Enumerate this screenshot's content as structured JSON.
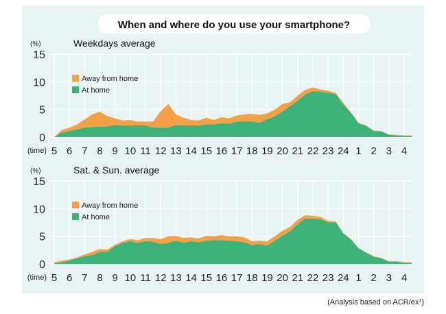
{
  "title": "When and where do you use your smartphone?",
  "footnote": "(Analysis based on ACR/ex",
  "footnote_sup": "1",
  "colors": {
    "away": "#f4a046",
    "home": "#3bb27a",
    "panel": "#e8f4f4",
    "grid": "#ffffff"
  },
  "chart_data": [
    {
      "type": "area",
      "stacked": true,
      "title": "Weekdays average",
      "ylabel": "(%)",
      "xlabel": "(time)",
      "ylim": [
        0,
        15
      ],
      "yticks": [
        "0",
        "5",
        "10",
        "15"
      ],
      "xticks": [
        "5",
        "6",
        "7",
        "8",
        "9",
        "10",
        "11",
        "12",
        "13",
        "14",
        "15",
        "16",
        "17",
        "18",
        "19",
        "20",
        "21",
        "22",
        "23",
        "24",
        "1",
        "2",
        "3",
        "4"
      ],
      "x": [
        5,
        5.5,
        6,
        6.5,
        7,
        7.5,
        8,
        8.5,
        9,
        9.5,
        10,
        10.5,
        11,
        11.5,
        12,
        12.5,
        13,
        13.5,
        14,
        14.5,
        15,
        15.5,
        16,
        16.5,
        17,
        17.5,
        18,
        18.5,
        19,
        19.5,
        20,
        20.5,
        21,
        21.5,
        22,
        22.5,
        23,
        23.5,
        24,
        24.5,
        25,
        25.5,
        26,
        26.5,
        27,
        27.5,
        28,
        28.5
      ],
      "grid": true,
      "legend_position": "top-left",
      "series": [
        {
          "name": "At home",
          "values": [
            0,
            0.8,
            1.1,
            1.4,
            1.7,
            1.8,
            1.9,
            1.9,
            2.2,
            2.1,
            2.1,
            2.1,
            2.1,
            1.7,
            1.7,
            1.7,
            2.2,
            2.1,
            2.1,
            2.1,
            2.3,
            2.3,
            2.5,
            2.4,
            2.8,
            2.8,
            2.8,
            2.6,
            3.2,
            3.8,
            4.6,
            5.6,
            6.6,
            7.7,
            8.3,
            8.2,
            8.0,
            7.8,
            5.9,
            4.4,
            2.5,
            2.0,
            1.1,
            1.0,
            0.4,
            0.3,
            0.2,
            0.2
          ]
        },
        {
          "name": "Away from home",
          "values": [
            0,
            0.5,
            0.6,
            0.9,
            1.5,
            2.3,
            2.7,
            1.9,
            1.2,
            0.9,
            1.0,
            0.7,
            0.7,
            1.1,
            3.0,
            4.3,
            1.9,
            1.4,
            1.0,
            0.9,
            1.2,
            0.8,
            1.1,
            1.0,
            1.1,
            1.3,
            1.4,
            1.4,
            1.1,
            1.2,
            1.4,
            0.7,
            0.9,
            0.8,
            0.7,
            0.4,
            0.4,
            0.2,
            0.3,
            0.1,
            0.1,
            0.1,
            0.1,
            0.1,
            0.1,
            0.1,
            0.1,
            0.1
          ]
        }
      ]
    },
    {
      "type": "area",
      "stacked": true,
      "title": "Sat. & Sun. average",
      "ylabel": "(%)",
      "xlabel": "(time)",
      "ylim": [
        0,
        15
      ],
      "yticks": [
        "0",
        "5",
        "10",
        "15"
      ],
      "xticks": [
        "5",
        "6",
        "7",
        "8",
        "9",
        "10",
        "11",
        "12",
        "13",
        "14",
        "15",
        "16",
        "17",
        "18",
        "19",
        "20",
        "21",
        "22",
        "23",
        "24",
        "1",
        "2",
        "3",
        "4"
      ],
      "x": [
        5,
        5.5,
        6,
        6.5,
        7,
        7.5,
        8,
        8.5,
        9,
        9.5,
        10,
        10.5,
        11,
        11.5,
        12,
        12.5,
        13,
        13.5,
        14,
        14.5,
        15,
        15.5,
        16,
        16.5,
        17,
        17.5,
        18,
        18.5,
        19,
        19.5,
        20,
        20.5,
        21,
        21.5,
        22,
        22.5,
        23,
        23.5,
        24,
        24.5,
        25,
        25.5,
        26,
        26.5,
        27,
        27.5,
        28,
        28.5
      ],
      "grid": true,
      "legend_position": "top-left",
      "series": [
        {
          "name": "At home",
          "values": [
            0.1,
            0.3,
            0.6,
            1.0,
            1.4,
            1.6,
            2.2,
            2.2,
            3.2,
            3.8,
            4.1,
            3.8,
            4.1,
            4.0,
            3.6,
            3.8,
            4.2,
            3.8,
            4.1,
            3.9,
            4.2,
            4.3,
            4.3,
            4.2,
            4.1,
            3.9,
            3.4,
            3.6,
            3.3,
            4.2,
            5.1,
            5.9,
            7.2,
            8.2,
            8.2,
            8.1,
            7.5,
            7.5,
            5.5,
            4.4,
            2.8,
            2.0,
            1.3,
            1.0,
            0.4,
            0.4,
            0.2,
            0.2
          ]
        },
        {
          "name": "Away from home",
          "values": [
            0.2,
            0.3,
            0.2,
            0.2,
            0.3,
            0.6,
            0.5,
            0.4,
            0.3,
            0.3,
            0.4,
            0.5,
            0.6,
            0.7,
            0.9,
            1.2,
            0.9,
            0.9,
            0.7,
            0.7,
            0.9,
            0.7,
            0.9,
            0.8,
            0.9,
            0.9,
            0.7,
            0.6,
            0.8,
            0.8,
            0.9,
            0.8,
            0.8,
            0.6,
            0.5,
            0.4,
            0.3,
            0.2,
            0.1,
            0.1,
            0.1,
            0.1,
            0.1,
            0.1,
            0.1,
            0.1,
            0.1,
            0.1
          ]
        }
      ]
    }
  ]
}
